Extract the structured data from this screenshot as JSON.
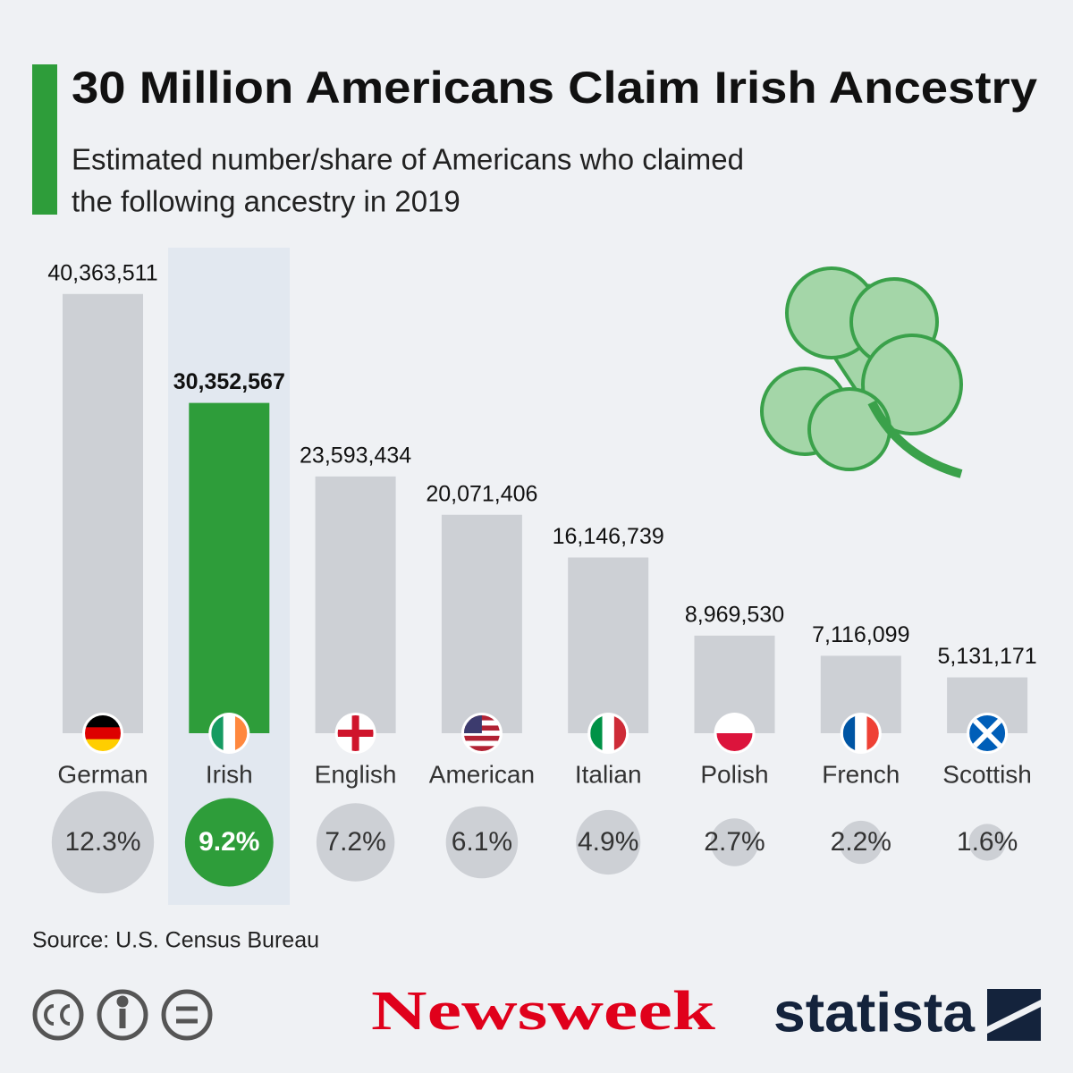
{
  "chart_data": {
    "type": "bar",
    "title": "30 Million Americans Claim Irish Ancestry",
    "subtitle": [
      "Estimated number/share of Americans who claimed",
      "the following ancestry in 2019"
    ],
    "categories": [
      "German",
      "Irish",
      "English",
      "American",
      "Italian",
      "Polish",
      "French",
      "Scottish"
    ],
    "values": [
      40363511,
      30352567,
      23593434,
      20071406,
      16146739,
      8969530,
      7116099,
      5131171
    ],
    "value_labels": [
      "40,363,511",
      "30,352,567",
      "23,593,434",
      "20,071,406",
      "16,146,739",
      "8,969,530",
      "7,116,099",
      "5,131,171"
    ],
    "shares": {
      "values": [
        12.3,
        9.2,
        7.2,
        6.1,
        4.9,
        2.7,
        2.2,
        1.6
      ],
      "value_labels": [
        "12.3%",
        "9.2%",
        "7.2%",
        "6.1%",
        "4.9%",
        "2.7%",
        "2.2%",
        "1.6%"
      ]
    },
    "color": "#cdd0d5",
    "highlight_category": "Irish",
    "highlight_color": "#2e9d3a",
    "ylim": [
      0,
      45000000
    ],
    "source": "Source: U.S. Census Bureau",
    "logos": [
      "Newsweek",
      "statista"
    ]
  }
}
